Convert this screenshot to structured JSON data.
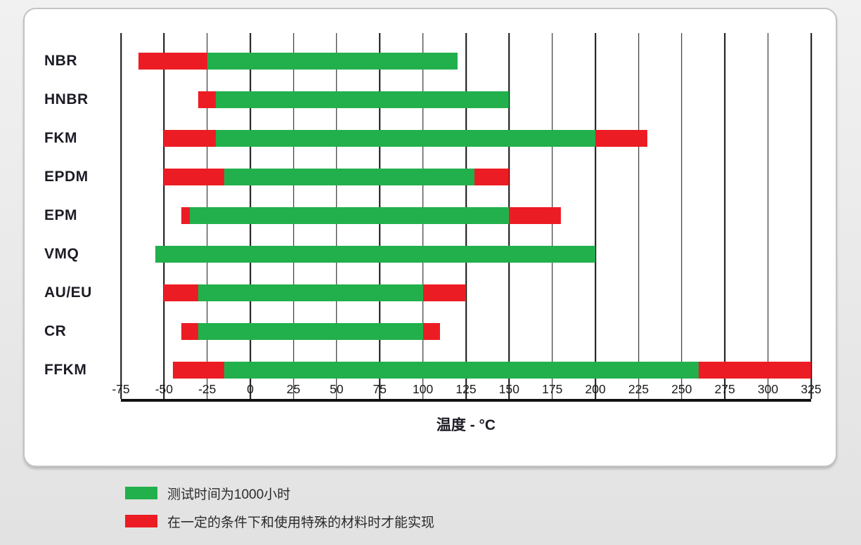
{
  "chart_data": {
    "type": "bar",
    "orientation": "horizontal-range",
    "title": "",
    "xlabel": "温度 - °C",
    "ylabel": "",
    "xlim": [
      -75,
      325
    ],
    "x_ticks": [
      -75,
      -50,
      -25,
      0,
      25,
      50,
      75,
      100,
      125,
      150,
      175,
      200,
      225,
      250,
      275,
      300,
      325
    ],
    "grid": "vertical",
    "legend_position": "below-chart",
    "colors": {
      "standard": "#22b04c",
      "special": "#ec1c24"
    },
    "categories": [
      "NBR",
      "HNBR",
      "FKM",
      "EPDM",
      "EPM",
      "VMQ",
      "AU/EU",
      "CR",
      "FFKM"
    ],
    "bars": [
      {
        "material": "NBR",
        "segments": [
          {
            "type": "special",
            "from": -65,
            "to": -25
          },
          {
            "type": "standard",
            "from": -25,
            "to": 120
          }
        ]
      },
      {
        "material": "HNBR",
        "segments": [
          {
            "type": "special",
            "from": -30,
            "to": -20
          },
          {
            "type": "standard",
            "from": -20,
            "to": 150
          }
        ]
      },
      {
        "material": "FKM",
        "segments": [
          {
            "type": "special",
            "from": -50,
            "to": -20
          },
          {
            "type": "standard",
            "from": -20,
            "to": 200
          },
          {
            "type": "special",
            "from": 200,
            "to": 230
          }
        ]
      },
      {
        "material": "EPDM",
        "segments": [
          {
            "type": "special",
            "from": -50,
            "to": -15
          },
          {
            "type": "standard",
            "from": -15,
            "to": 130
          },
          {
            "type": "special",
            "from": 130,
            "to": 150
          }
        ]
      },
      {
        "material": "EPM",
        "segments": [
          {
            "type": "special",
            "from": -40,
            "to": -35
          },
          {
            "type": "standard",
            "from": -35,
            "to": 150
          },
          {
            "type": "special",
            "from": 150,
            "to": 180
          }
        ]
      },
      {
        "material": "VMQ",
        "segments": [
          {
            "type": "standard",
            "from": -55,
            "to": 200
          }
        ]
      },
      {
        "material": "AU/EU",
        "segments": [
          {
            "type": "special",
            "from": -50,
            "to": -30
          },
          {
            "type": "standard",
            "from": -30,
            "to": 100
          },
          {
            "type": "special",
            "from": 100,
            "to": 125
          }
        ]
      },
      {
        "material": "CR",
        "segments": [
          {
            "type": "special",
            "from": -40,
            "to": -30
          },
          {
            "type": "standard",
            "from": -30,
            "to": 100
          },
          {
            "type": "special",
            "from": 100,
            "to": 110
          }
        ]
      },
      {
        "material": "FFKM",
        "segments": [
          {
            "type": "special",
            "from": -45,
            "to": -15
          },
          {
            "type": "standard",
            "from": -15,
            "to": 260
          },
          {
            "type": "special",
            "from": 260,
            "to": 325
          }
        ]
      }
    ],
    "legend": [
      {
        "type": "standard",
        "label": "测试时间为1000小时"
      },
      {
        "type": "special",
        "label": "在一定的条件下和使用特殊的材料时才能实现"
      }
    ]
  }
}
